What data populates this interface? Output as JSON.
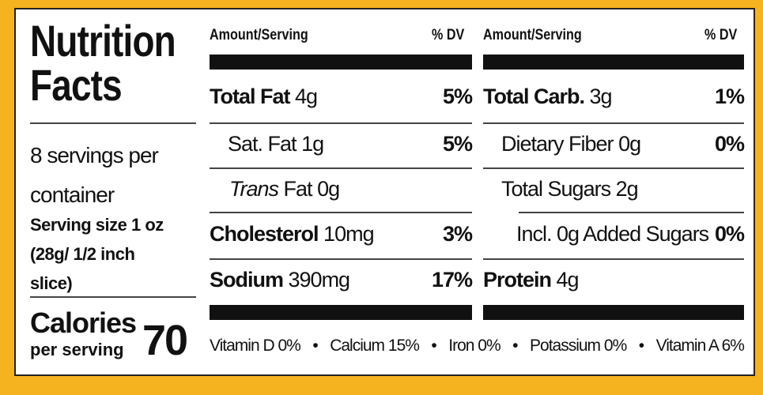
{
  "title": "Nutrition Facts",
  "servings": "8 servings per container",
  "serving_size": "Serving size 1 oz (28g/ 1/2 inch slice)",
  "calories": {
    "label": "Calories",
    "sub": "per serving",
    "value": "70"
  },
  "columns": [
    {
      "header": {
        "amount": "Amount/Serving",
        "dv": "% DV"
      },
      "rows": [
        {
          "name": "Total Fat",
          "amount": "4g",
          "dv": "5%"
        },
        {
          "name": "Sat. Fat",
          "amount": "1g",
          "dv": "5%"
        },
        {
          "name_italic": "Trans",
          "name": "Fat",
          "amount": "0g"
        },
        {
          "name": "Cholesterol",
          "amount": "10mg",
          "dv": "3%"
        },
        {
          "name": "Sodium",
          "amount": "390mg",
          "dv": "17%"
        }
      ]
    },
    {
      "header": {
        "amount": "Amount/Serving",
        "dv": "% DV"
      },
      "rows": [
        {
          "name": "Total Carb.",
          "amount": "3g",
          "dv": "1%"
        },
        {
          "name": "Dietary Fiber",
          "amount": "0g",
          "dv": "0%"
        },
        {
          "name": "Total Sugars",
          "amount": "2g"
        },
        {
          "name": "Incl. 0g Added Sugars",
          "dv": "0%"
        },
        {
          "name": "Protein",
          "amount": "4g"
        }
      ]
    }
  ],
  "vitamins": [
    "Vitamin D 0%",
    "Calcium 15%",
    "Iron 0%",
    "Potassium 0%",
    "Vitamin A 6%"
  ]
}
